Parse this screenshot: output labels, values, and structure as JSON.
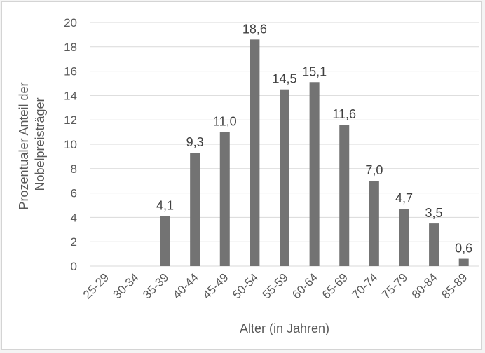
{
  "chart_data": {
    "type": "bar",
    "title": "",
    "xlabel": "Alter (in Jahren)",
    "ylabel": [
      "Prozentualer Anteil der",
      "Nobelpreisträger"
    ],
    "categories": [
      "25-29",
      "30-34",
      "35-39",
      "40-44",
      "45-49",
      "50-54",
      "55-59",
      "60-64",
      "65-69",
      "70-74",
      "75-79",
      "80-84",
      "85-89"
    ],
    "values": [
      0,
      0,
      4.1,
      9.3,
      11.0,
      18.6,
      14.5,
      15.1,
      11.6,
      7.0,
      4.7,
      3.5,
      0.6
    ],
    "data_labels": [
      "",
      "",
      "4,1",
      "9,3",
      "11,0",
      "18,6",
      "14,5",
      "15,1",
      "11,6",
      "7,0",
      "4,7",
      "3,5",
      "0,6"
    ],
    "ylim": [
      0,
      20
    ],
    "yticks": [
      0,
      2,
      4,
      6,
      8,
      10,
      12,
      14,
      16,
      18,
      20
    ],
    "grid": "horizontal",
    "legend": "none",
    "bar_color": "#737373",
    "grid_color": "#d9d9d9"
  }
}
